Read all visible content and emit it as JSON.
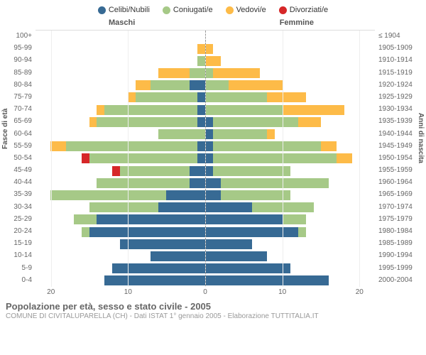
{
  "legend": [
    {
      "label": "Celibi/Nubili",
      "color": "#376a94"
    },
    {
      "label": "Coniugati/e",
      "color": "#a6c987"
    },
    {
      "label": "Vedovi/e",
      "color": "#fdbb48"
    },
    {
      "label": "Divorziati/e",
      "color": "#d62728"
    }
  ],
  "headers": {
    "male": "Maschi",
    "female": "Femmine"
  },
  "axis": {
    "left_title": "Fasce di età",
    "right_title": "Anni di nascita",
    "x_max": 22,
    "x_ticks": [
      20,
      10,
      0,
      10,
      20
    ]
  },
  "rows": [
    {
      "age": "100+",
      "birth": "≤ 1904",
      "m": [
        0,
        0,
        0,
        0
      ],
      "f": [
        0,
        0,
        0,
        0
      ]
    },
    {
      "age": "95-99",
      "birth": "1905-1909",
      "m": [
        0,
        0,
        1,
        0
      ],
      "f": [
        0,
        0,
        1,
        0
      ]
    },
    {
      "age": "90-94",
      "birth": "1910-1914",
      "m": [
        0,
        1,
        0,
        0
      ],
      "f": [
        0,
        0,
        2,
        0
      ]
    },
    {
      "age": "85-89",
      "birth": "1915-1919",
      "m": [
        0,
        2,
        4,
        0
      ],
      "f": [
        0,
        1,
        6,
        0
      ]
    },
    {
      "age": "80-84",
      "birth": "1920-1924",
      "m": [
        2,
        5,
        2,
        0
      ],
      "f": [
        0,
        3,
        7,
        0
      ]
    },
    {
      "age": "75-79",
      "birth": "1925-1929",
      "m": [
        1,
        8,
        1,
        0
      ],
      "f": [
        0,
        8,
        5,
        0
      ]
    },
    {
      "age": "70-74",
      "birth": "1930-1934",
      "m": [
        1,
        12,
        1,
        0
      ],
      "f": [
        0,
        10,
        8,
        0
      ]
    },
    {
      "age": "65-69",
      "birth": "1935-1939",
      "m": [
        1,
        13,
        1,
        0
      ],
      "f": [
        1,
        11,
        3,
        0
      ]
    },
    {
      "age": "60-64",
      "birth": "1940-1944",
      "m": [
        0,
        6,
        0,
        0
      ],
      "f": [
        1,
        7,
        1,
        0
      ]
    },
    {
      "age": "55-59",
      "birth": "1945-1949",
      "m": [
        1,
        17,
        2,
        0
      ],
      "f": [
        1,
        14,
        2,
        0
      ]
    },
    {
      "age": "50-54",
      "birth": "1950-1954",
      "m": [
        1,
        14,
        0,
        1
      ],
      "f": [
        1,
        16,
        2,
        0
      ]
    },
    {
      "age": "45-49",
      "birth": "1955-1959",
      "m": [
        2,
        9,
        0,
        1
      ],
      "f": [
        1,
        10,
        0,
        0
      ]
    },
    {
      "age": "40-44",
      "birth": "1960-1964",
      "m": [
        2,
        12,
        0,
        0
      ],
      "f": [
        2,
        14,
        0,
        0
      ]
    },
    {
      "age": "35-39",
      "birth": "1965-1969",
      "m": [
        5,
        15,
        0,
        0
      ],
      "f": [
        2,
        9,
        0,
        0
      ]
    },
    {
      "age": "30-34",
      "birth": "1970-1974",
      "m": [
        6,
        9,
        0,
        0
      ],
      "f": [
        6,
        8,
        0,
        0
      ]
    },
    {
      "age": "25-29",
      "birth": "1975-1979",
      "m": [
        14,
        3,
        0,
        0
      ],
      "f": [
        10,
        3,
        0,
        0
      ]
    },
    {
      "age": "20-24",
      "birth": "1980-1984",
      "m": [
        15,
        1,
        0,
        0
      ],
      "f": [
        12,
        1,
        0,
        0
      ]
    },
    {
      "age": "15-19",
      "birth": "1985-1989",
      "m": [
        11,
        0,
        0,
        0
      ],
      "f": [
        6,
        0,
        0,
        0
      ]
    },
    {
      "age": "10-14",
      "birth": "1990-1994",
      "m": [
        7,
        0,
        0,
        0
      ],
      "f": [
        8,
        0,
        0,
        0
      ]
    },
    {
      "age": "5-9",
      "birth": "1995-1999",
      "m": [
        12,
        0,
        0,
        0
      ],
      "f": [
        11,
        0,
        0,
        0
      ]
    },
    {
      "age": "0-4",
      "birth": "2000-2004",
      "m": [
        13,
        0,
        0,
        0
      ],
      "f": [
        16,
        0,
        0,
        0
      ]
    }
  ],
  "footer": {
    "title": "Popolazione per età, sesso e stato civile - 2005",
    "subtitle": "COMUNE DI CIVITALUPARELLA (CH) - Dati ISTAT 1° gennaio 2005 - Elaborazione TUTTITALIA.IT"
  }
}
